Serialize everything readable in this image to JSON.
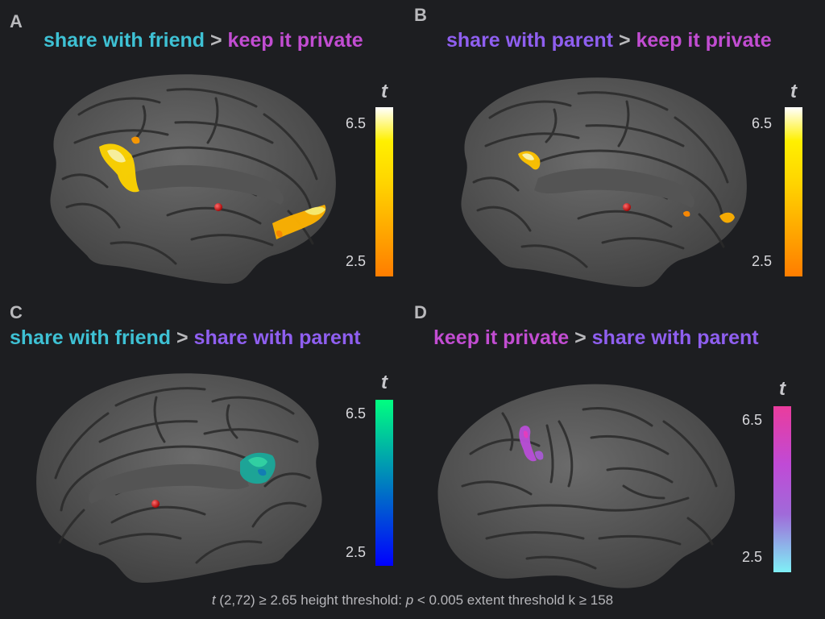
{
  "colors": {
    "friend": "#3ec1d4",
    "parent": "#8f5ff0",
    "private": "#c24dd2",
    "separator": "#b9b9bc",
    "background": "#1d1e21"
  },
  "panels": [
    {
      "letter": "A",
      "title_left": "share with friend",
      "title_left_color": "#3ec1d4",
      "separator": ">",
      "title_right": "keep it private",
      "title_right_color": "#c24dd2",
      "view": "medial-sagittal",
      "colorbar": {
        "label": "t",
        "max": "6.5",
        "min": "2.5",
        "colormap": "hot"
      }
    },
    {
      "letter": "B",
      "title_left": "share with parent",
      "title_left_color": "#8f5ff0",
      "separator": ">",
      "title_right": "keep it private",
      "title_right_color": "#c24dd2",
      "view": "medial-sagittal",
      "colorbar": {
        "label": "t",
        "max": "6.5",
        "min": "2.5",
        "colormap": "hot"
      }
    },
    {
      "letter": "C",
      "title_left": "share with friend",
      "title_left_color": "#3ec1d4",
      "separator": ">",
      "title_right": "share with parent",
      "title_right_color": "#8f5ff0",
      "view": "medial-sagittal-mirrored",
      "colorbar": {
        "label": "t",
        "max": "6.5",
        "min": "2.5",
        "colormap": "winter"
      }
    },
    {
      "letter": "D",
      "title_left": "keep it private",
      "title_left_color": "#c24dd2",
      "separator": ">",
      "title_right": "share with parent",
      "title_right_color": "#8f5ff0",
      "view": "lateral",
      "colorbar": {
        "label": "t",
        "max": "6.5",
        "min": "2.5",
        "colormap": "pink-purple-cyan"
      }
    }
  ],
  "footer": {
    "t_symbol": "t",
    "part1": " (2,72) ≥ 2.65 height threshold: ",
    "p_symbol": "p",
    "part2": " < 0.005 extent threshold k ≥ 158"
  }
}
